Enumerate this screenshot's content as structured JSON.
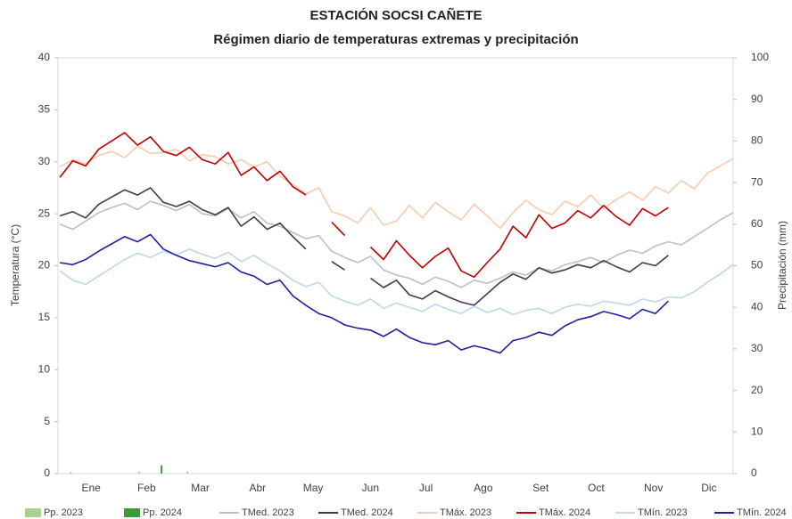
{
  "chart_data": {
    "type": "line",
    "title": "ESTACIÓN SOCSI CAÑETE",
    "subtitle": "Régimen diario de temperaturas extremas y precipitación",
    "y_label": "Temperatura (°C)",
    "y2_label": "Precipitación (mm)",
    "xlim": [
      0,
      365
    ],
    "xticks": [
      {
        "value": 16,
        "label": "Ene"
      },
      {
        "value": 46,
        "label": "Feb"
      },
      {
        "value": 75,
        "label": "Mar"
      },
      {
        "value": 106,
        "label": "Abr"
      },
      {
        "value": 136,
        "label": "May"
      },
      {
        "value": 167,
        "label": "Jun"
      },
      {
        "value": 197,
        "label": "Jul"
      },
      {
        "value": 228,
        "label": "Ago"
      },
      {
        "value": 259,
        "label": "Set"
      },
      {
        "value": 289,
        "label": "Oct"
      },
      {
        "value": 320,
        "label": "Nov"
      },
      {
        "value": 350,
        "label": "Dic"
      }
    ],
    "ylim": [
      0,
      40
    ],
    "yticks": [
      0,
      5,
      10,
      15,
      20,
      25,
      30,
      35,
      40
    ],
    "y2lim": [
      0,
      100
    ],
    "y2ticks": [
      0,
      10,
      20,
      30,
      40,
      50,
      60,
      70,
      80,
      90,
      100
    ],
    "grid": false,
    "legend": "bottom",
    "x": [
      1,
      8,
      15,
      22,
      29,
      36,
      43,
      50,
      57,
      64,
      71,
      78,
      85,
      92,
      99,
      106,
      113,
      120,
      127,
      134,
      141,
      148,
      155,
      162,
      169,
      176,
      183,
      190,
      197,
      204,
      211,
      218,
      225,
      232,
      239,
      246,
      253,
      260,
      267,
      274,
      281,
      288,
      295,
      302,
      309,
      316,
      323,
      330,
      337,
      344,
      351,
      358,
      365
    ],
    "series": [
      {
        "name": "Pp. 2023",
        "type": "bar",
        "axis": "y2",
        "color": "#a9d18e",
        "x": [
          7,
          44,
          70
        ],
        "values": [
          0.4,
          0.5,
          0.5
        ]
      },
      {
        "name": "Pp. 2024",
        "type": "bar",
        "axis": "y2",
        "color": "#3a9d3a",
        "x": [
          56
        ],
        "values": [
          2.0
        ]
      },
      {
        "name": "TMed. 2023",
        "color": "#bfbfbf",
        "values": [
          24.0,
          23.5,
          24.3,
          25.1,
          25.6,
          26.0,
          25.4,
          26.2,
          25.8,
          25.3,
          25.9,
          25.0,
          24.8,
          25.5,
          24.6,
          25.2,
          24.1,
          23.8,
          23.2,
          22.6,
          22.9,
          21.4,
          20.8,
          20.3,
          20.9,
          19.6,
          19.1,
          18.8,
          18.2,
          18.9,
          18.5,
          17.9,
          18.6,
          18.3,
          18.8,
          19.4,
          19.1,
          19.8,
          19.5,
          20.1,
          20.4,
          20.8,
          20.3,
          21.0,
          21.5,
          21.2,
          21.9,
          22.3,
          22.0,
          22.8,
          23.6,
          24.4,
          25.1
        ]
      },
      {
        "name": "TMed. 2024",
        "color": "#44394f",
        "values": [
          24.8,
          25.2,
          24.6,
          25.9,
          26.6,
          27.3,
          26.8,
          27.5,
          26.1,
          25.7,
          26.2,
          25.4,
          24.9,
          25.6,
          23.8,
          24.7,
          23.5,
          24.1,
          22.8,
          21.6,
          null,
          20.4,
          19.6,
          null,
          18.8,
          17.9,
          18.6,
          17.2,
          16.8,
          17.6,
          17.0,
          16.5,
          16.2,
          17.3,
          18.4,
          19.2,
          18.7,
          19.8,
          19.3,
          19.6,
          20.1,
          19.8,
          20.5,
          19.9,
          19.4,
          20.3,
          20.0,
          21.0,
          null,
          null,
          null,
          null,
          null
        ]
      },
      {
        "name": "TMáx. 2023",
        "color": "#f8cbad",
        "values": [
          29.5,
          30.2,
          29.8,
          30.6,
          31.0,
          30.4,
          31.5,
          30.8,
          30.9,
          31.2,
          30.1,
          30.7,
          30.5,
          29.8,
          30.2,
          29.5,
          30.0,
          28.6,
          27.8,
          26.9,
          27.5,
          25.2,
          24.8,
          24.1,
          25.6,
          23.9,
          24.3,
          25.8,
          24.6,
          26.1,
          25.2,
          24.4,
          25.9,
          24.8,
          23.6,
          25.1,
          26.3,
          25.4,
          24.9,
          26.2,
          25.7,
          26.8,
          25.5,
          26.4,
          27.1,
          26.3,
          27.6,
          27.0,
          28.2,
          27.4,
          28.9,
          29.6,
          30.3
        ]
      },
      {
        "name": "TMáx. 2024",
        "color": "#c00000",
        "values": [
          28.5,
          30.1,
          29.6,
          31.2,
          32.0,
          32.8,
          31.6,
          32.4,
          31.0,
          30.6,
          31.4,
          30.2,
          29.8,
          30.9,
          28.7,
          29.5,
          28.2,
          29.1,
          27.6,
          26.8,
          null,
          24.2,
          22.9,
          null,
          21.8,
          20.6,
          22.4,
          21.0,
          19.8,
          20.9,
          21.7,
          19.5,
          18.9,
          20.3,
          21.6,
          23.8,
          22.7,
          24.9,
          23.6,
          24.1,
          25.3,
          24.6,
          25.8,
          24.7,
          23.9,
          25.5,
          24.8,
          25.6,
          null,
          null,
          null,
          null,
          null
        ]
      },
      {
        "name": "TMín. 2023",
        "color": "#bdd7ee",
        "values": [
          19.5,
          18.6,
          18.2,
          19.0,
          19.8,
          20.6,
          21.2,
          20.8,
          21.4,
          21.0,
          21.6,
          21.1,
          20.7,
          21.3,
          20.4,
          21.0,
          20.2,
          19.5,
          18.6,
          18.0,
          18.4,
          17.1,
          16.6,
          16.2,
          16.8,
          15.9,
          16.4,
          16.0,
          15.6,
          16.3,
          15.8,
          15.4,
          16.1,
          15.5,
          15.9,
          15.3,
          15.7,
          15.9,
          15.4,
          16.0,
          16.3,
          16.1,
          16.6,
          16.4,
          16.2,
          16.8,
          16.5,
          17.0,
          16.9,
          17.5,
          18.4,
          19.2,
          20.1
        ]
      },
      {
        "name": "TMín. 2024",
        "color": "#1f1f9f",
        "values": [
          20.3,
          20.1,
          20.6,
          21.4,
          22.1,
          22.8,
          22.3,
          23.0,
          21.6,
          21.0,
          20.5,
          20.2,
          19.9,
          20.3,
          19.4,
          19.0,
          18.2,
          18.6,
          17.1,
          16.2,
          15.4,
          15.0,
          14.3,
          14.0,
          13.8,
          13.2,
          13.9,
          13.1,
          12.6,
          12.4,
          12.8,
          11.9,
          12.3,
          12.0,
          11.6,
          12.8,
          13.1,
          13.6,
          13.3,
          14.2,
          14.8,
          15.1,
          15.6,
          15.3,
          14.9,
          15.8,
          15.4,
          16.6,
          null,
          null,
          null,
          null,
          null
        ]
      }
    ]
  }
}
